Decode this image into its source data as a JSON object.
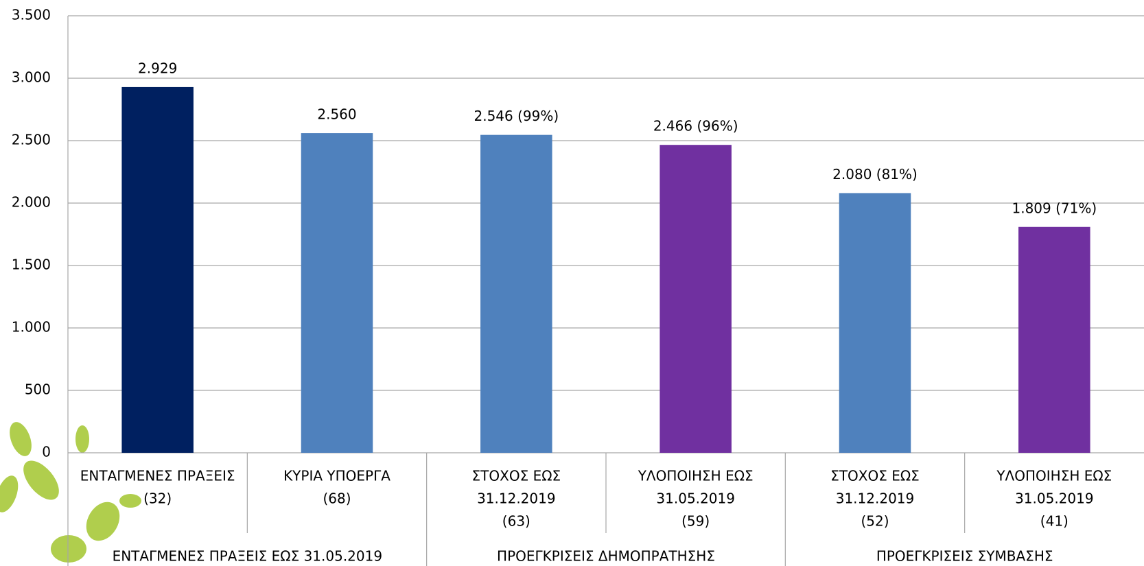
{
  "chart_data": {
    "type": "bar",
    "groups": [
      {
        "label": "ΕΝΤΑΓΜΕΝΕΣ ΠΡΑΞΕΙΣ ΕΩΣ 31.05.2019",
        "categories": [
          [
            "ΕΝΤΑΓΜΕΝΕΣ ΠΡΑΞΕΙΣ",
            "(32)"
          ],
          [
            "ΚΥΡΙΑ ΥΠΟΕΡΓΑ",
            "(68)"
          ]
        ],
        "values": [
          2929,
          2560
        ],
        "value_labels": [
          "2.929",
          "2.560"
        ],
        "colors": [
          "#002060",
          "#4f81bd"
        ]
      },
      {
        "label": "ΠΡΟΕΓΚΡΙΣΕΙΣ ΔΗΜΟΠΡΑΤΗΣΗΣ",
        "categories": [
          [
            "ΣΤΟΧΟΣ ΕΩΣ",
            "31.12.2019",
            "(63)"
          ],
          [
            "ΥΛΟΠΟΙΗΣΗ ΕΩΣ",
            "31.05.2019",
            "(59)"
          ]
        ],
        "values": [
          2546,
          2466
        ],
        "value_labels": [
          "2.546 (99%)",
          "2.466 (96%)"
        ],
        "colors": [
          "#4f81bd",
          "#7030a0"
        ]
      },
      {
        "label": "ΠΡΟΕΓΚΡΙΣΕΙΣ ΣΥΜΒΑΣΗΣ",
        "categories": [
          [
            "ΣΤΟΧΟΣ ΕΩΣ",
            "31.12.2019",
            "(52)"
          ],
          [
            "ΥΛΟΠΟΙΗΣΗ ΕΩΣ",
            "31.05.2019",
            "(41)"
          ]
        ],
        "values": [
          2080,
          1809
        ],
        "value_labels": [
          "2.080 (81%)",
          "1.809 (71%)"
        ],
        "colors": [
          "#4f81bd",
          "#7030a0"
        ]
      }
    ],
    "ylim": [
      0,
      3500
    ],
    "yticks": [
      0,
      500,
      {
        "value": 1000,
        "label": "1.000"
      },
      {
        "value": 1500,
        "label": "1.500"
      },
      {
        "value": 2000,
        "label": "2.000"
      },
      {
        "value": 2500,
        "label": "2.500"
      },
      {
        "value": 3000,
        "label": "3.000"
      },
      {
        "value": 3500,
        "label": "3.500"
      }
    ],
    "grid": true
  }
}
